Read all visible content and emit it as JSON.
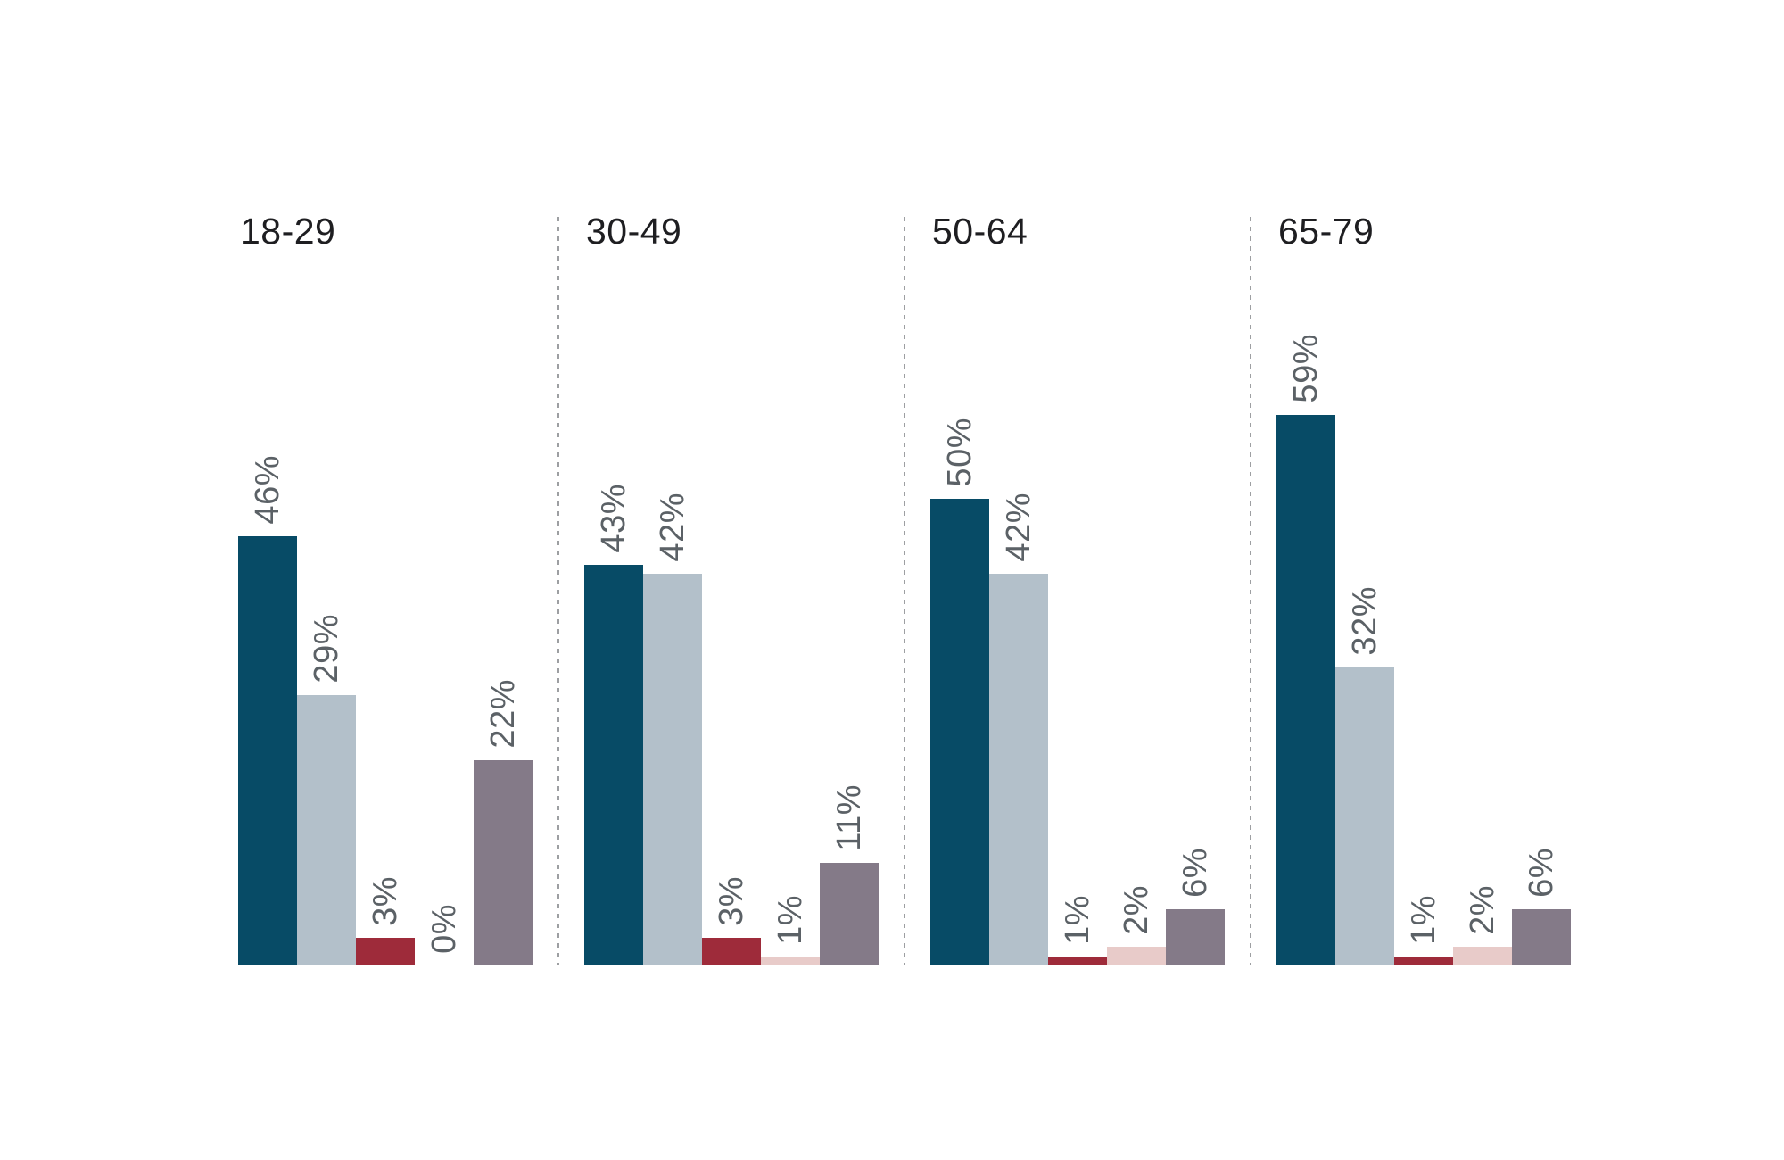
{
  "chart_data": {
    "type": "bar",
    "grouped": true,
    "title": "",
    "categories": [
      "18-29",
      "30-49",
      "50-64",
      "65-79"
    ],
    "series": [
      {
        "color": "#074b66",
        "values": [
          46,
          43,
          50,
          59
        ]
      },
      {
        "color": "#b3c0ca",
        "values": [
          29,
          42,
          42,
          32
        ]
      },
      {
        "color": "#9e2b3a",
        "values": [
          3,
          3,
          1,
          1
        ]
      },
      {
        "color": "#e8cbc9",
        "values": [
          0,
          1,
          2,
          2
        ]
      },
      {
        "color": "#847a88",
        "values": [
          22,
          11,
          6,
          6
        ]
      }
    ],
    "value_labels": [
      [
        "46%",
        "29%",
        "3%",
        "0%",
        "22%"
      ],
      [
        "43%",
        "42%",
        "3%",
        "1%",
        "11%"
      ],
      [
        "50%",
        "42%",
        "1%",
        "2%",
        "6%"
      ],
      [
        "59%",
        "32%",
        "1%",
        "2%",
        "6%"
      ]
    ],
    "value_suffix": "%",
    "value_label_rotation_deg": -90,
    "legend": "none",
    "gridlines": false,
    "axes_visible": false,
    "group_divider_style": "dashed",
    "colors": {
      "divider": "#9d9fa2",
      "value_label": "#5b6166",
      "category_label": "#1e1e21",
      "background": "#ffffff"
    }
  }
}
